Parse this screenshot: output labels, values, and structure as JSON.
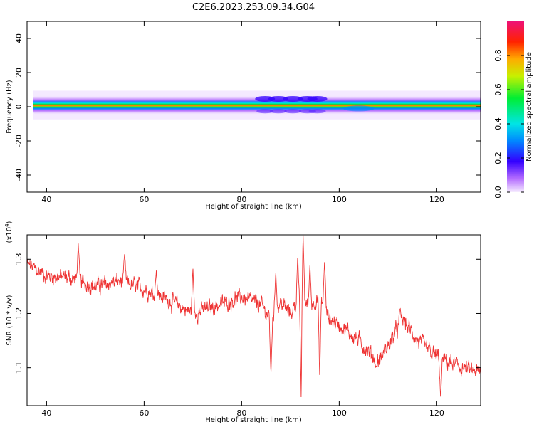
{
  "figure_title": "C2E6.2023.253.09.34.G04",
  "chart_data": [
    {
      "type": "heatmap",
      "title": "C2E6.2023.253.09.34.G04",
      "xlabel": "Height of straight line (km)",
      "ylabel": "Frequency (Hz)",
      "xlim": [
        36,
        129
      ],
      "ylim": [
        -50,
        50
      ],
      "x_ticks": [
        40,
        60,
        80,
        100,
        120
      ],
      "y_ticks": [
        40,
        20,
        0,
        -20,
        -40
      ],
      "colorbar": {
        "label": "Normalized spectral amplitude",
        "range": [
          0,
          1
        ],
        "ticks": [
          0.0,
          0.2,
          0.4,
          0.6,
          0.8
        ]
      },
      "band": {
        "center_freq_hz": 1,
        "core_halfwidth_hz": 1.5,
        "halo_halfwidth_hz": 4,
        "disturbance_km": [
          84,
          97
        ]
      }
    },
    {
      "type": "line",
      "xlabel": "Height of straight line (km)",
      "ylabel": "SNR (10 * v/v)",
      "y_scale_label": "(x10",
      "y_scale_exp": "4",
      "y_scale_close": ")",
      "xlim": [
        36,
        129
      ],
      "ylim": [
        1.03,
        1.345
      ],
      "x_ticks": [
        40,
        60,
        80,
        100,
        120
      ],
      "y_ticks": [
        1.3,
        1.2,
        1.1
      ],
      "color": "#ee3333",
      "trend_x": [
        36,
        40,
        45,
        50,
        55,
        60,
        65,
        70,
        75,
        80,
        84,
        86,
        88,
        90,
        92,
        94,
        96,
        98,
        100,
        104,
        108,
        110,
        113,
        116,
        120,
        125,
        129
      ],
      "trend_y": [
        1.29,
        1.27,
        1.265,
        1.25,
        1.26,
        1.245,
        1.225,
        1.2,
        1.215,
        1.23,
        1.215,
        1.19,
        1.22,
        1.2,
        1.23,
        1.215,
        1.23,
        1.19,
        1.18,
        1.15,
        1.11,
        1.14,
        1.19,
        1.15,
        1.12,
        1.1,
        1.09
      ],
      "noise_amplitude": 0.012,
      "spikes": [
        {
          "x": 46.5,
          "y": 1.33
        },
        {
          "x": 56.0,
          "y": 1.31
        },
        {
          "x": 62.5,
          "y": 1.28
        },
        {
          "x": 70.0,
          "y": 1.285
        },
        {
          "x": 86.0,
          "y": 1.085
        },
        {
          "x": 87.0,
          "y": 1.28
        },
        {
          "x": 91.5,
          "y": 1.31
        },
        {
          "x": 92.2,
          "y": 1.045
        },
        {
          "x": 92.6,
          "y": 1.345
        },
        {
          "x": 94.0,
          "y": 1.29
        },
        {
          "x": 96.0,
          "y": 1.08
        },
        {
          "x": 97.0,
          "y": 1.3
        },
        {
          "x": 107.5,
          "y": 1.1
        },
        {
          "x": 112.5,
          "y": 1.21
        },
        {
          "x": 120.8,
          "y": 1.04
        }
      ]
    }
  ]
}
